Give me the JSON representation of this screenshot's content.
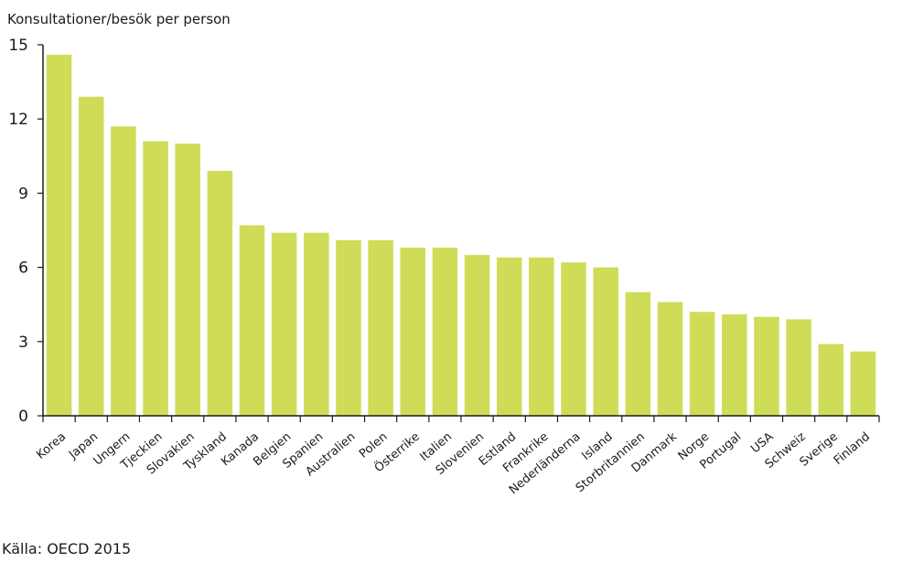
{
  "chart_data": {
    "type": "bar",
    "ylabel": "Konsultationer/besök per person",
    "source": "Källa: OECD 2015",
    "ylim": [
      0,
      15
    ],
    "yticks": [
      0,
      3,
      6,
      9,
      12,
      15
    ],
    "bar_color": "#cfdc57",
    "grid": false,
    "categories": [
      "Korea",
      "Japan",
      "Ungern",
      "Tjeckien",
      "Slovakien",
      "Tyskland",
      "Kanada",
      "Belgien",
      "Spanien",
      "Australien",
      "Polen",
      "Österrike",
      "Italien",
      "Slovenien",
      "Estland",
      "Frankrike",
      "Nederländerna",
      "Island",
      "Storbritannien",
      "Danmark",
      "Norge",
      "Portugal",
      "USA",
      "Schweiz",
      "Sverige",
      "Finland"
    ],
    "values": [
      14.6,
      12.9,
      11.7,
      11.1,
      11.0,
      9.9,
      7.7,
      7.4,
      7.4,
      7.1,
      7.1,
      6.8,
      6.8,
      6.5,
      6.4,
      6.4,
      6.2,
      6.0,
      5.0,
      4.6,
      4.2,
      4.1,
      4.0,
      3.9,
      2.9,
      2.6
    ]
  }
}
